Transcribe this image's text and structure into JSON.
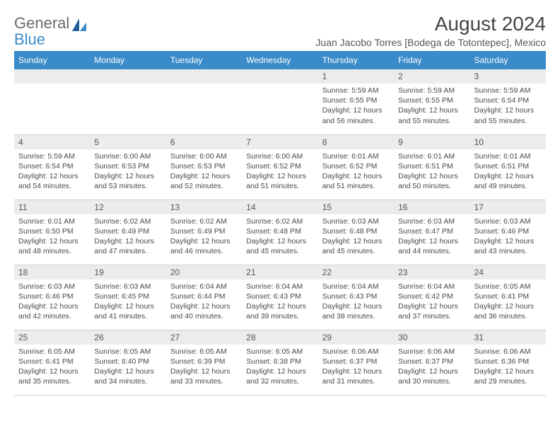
{
  "logo": {
    "word1": "General",
    "word2": "Blue"
  },
  "title": "August 2024",
  "location": "Juan Jacobo Torres [Bodega de Totontepec], Mexico",
  "colors": {
    "header_bg": "#3a8bc9",
    "header_text": "#ffffff",
    "daynum_bg": "#ececec",
    "border": "#d0d0d0",
    "body_text": "#4a4a4a"
  },
  "weekdays": [
    "Sunday",
    "Monday",
    "Tuesday",
    "Wednesday",
    "Thursday",
    "Friday",
    "Saturday"
  ],
  "layout": {
    "first_weekday_index": 4,
    "num_days": 31,
    "cols": 7,
    "rows": 5
  },
  "days": {
    "1": {
      "sunrise": "5:59 AM",
      "sunset": "6:55 PM",
      "daylight": "12 hours and 56 minutes."
    },
    "2": {
      "sunrise": "5:59 AM",
      "sunset": "6:55 PM",
      "daylight": "12 hours and 55 minutes."
    },
    "3": {
      "sunrise": "5:59 AM",
      "sunset": "6:54 PM",
      "daylight": "12 hours and 55 minutes."
    },
    "4": {
      "sunrise": "5:59 AM",
      "sunset": "6:54 PM",
      "daylight": "12 hours and 54 minutes."
    },
    "5": {
      "sunrise": "6:00 AM",
      "sunset": "6:53 PM",
      "daylight": "12 hours and 53 minutes."
    },
    "6": {
      "sunrise": "6:00 AM",
      "sunset": "6:53 PM",
      "daylight": "12 hours and 52 minutes."
    },
    "7": {
      "sunrise": "6:00 AM",
      "sunset": "6:52 PM",
      "daylight": "12 hours and 51 minutes."
    },
    "8": {
      "sunrise": "6:01 AM",
      "sunset": "6:52 PM",
      "daylight": "12 hours and 51 minutes."
    },
    "9": {
      "sunrise": "6:01 AM",
      "sunset": "6:51 PM",
      "daylight": "12 hours and 50 minutes."
    },
    "10": {
      "sunrise": "6:01 AM",
      "sunset": "6:51 PM",
      "daylight": "12 hours and 49 minutes."
    },
    "11": {
      "sunrise": "6:01 AM",
      "sunset": "6:50 PM",
      "daylight": "12 hours and 48 minutes."
    },
    "12": {
      "sunrise": "6:02 AM",
      "sunset": "6:49 PM",
      "daylight": "12 hours and 47 minutes."
    },
    "13": {
      "sunrise": "6:02 AM",
      "sunset": "6:49 PM",
      "daylight": "12 hours and 46 minutes."
    },
    "14": {
      "sunrise": "6:02 AM",
      "sunset": "6:48 PM",
      "daylight": "12 hours and 45 minutes."
    },
    "15": {
      "sunrise": "6:03 AM",
      "sunset": "6:48 PM",
      "daylight": "12 hours and 45 minutes."
    },
    "16": {
      "sunrise": "6:03 AM",
      "sunset": "6:47 PM",
      "daylight": "12 hours and 44 minutes."
    },
    "17": {
      "sunrise": "6:03 AM",
      "sunset": "6:46 PM",
      "daylight": "12 hours and 43 minutes."
    },
    "18": {
      "sunrise": "6:03 AM",
      "sunset": "6:46 PM",
      "daylight": "12 hours and 42 minutes."
    },
    "19": {
      "sunrise": "6:03 AM",
      "sunset": "6:45 PM",
      "daylight": "12 hours and 41 minutes."
    },
    "20": {
      "sunrise": "6:04 AM",
      "sunset": "6:44 PM",
      "daylight": "12 hours and 40 minutes."
    },
    "21": {
      "sunrise": "6:04 AM",
      "sunset": "6:43 PM",
      "daylight": "12 hours and 39 minutes."
    },
    "22": {
      "sunrise": "6:04 AM",
      "sunset": "6:43 PM",
      "daylight": "12 hours and 38 minutes."
    },
    "23": {
      "sunrise": "6:04 AM",
      "sunset": "6:42 PM",
      "daylight": "12 hours and 37 minutes."
    },
    "24": {
      "sunrise": "6:05 AM",
      "sunset": "6:41 PM",
      "daylight": "12 hours and 36 minutes."
    },
    "25": {
      "sunrise": "6:05 AM",
      "sunset": "6:41 PM",
      "daylight": "12 hours and 35 minutes."
    },
    "26": {
      "sunrise": "6:05 AM",
      "sunset": "6:40 PM",
      "daylight": "12 hours and 34 minutes."
    },
    "27": {
      "sunrise": "6:05 AM",
      "sunset": "6:39 PM",
      "daylight": "12 hours and 33 minutes."
    },
    "28": {
      "sunrise": "6:05 AM",
      "sunset": "6:38 PM",
      "daylight": "12 hours and 32 minutes."
    },
    "29": {
      "sunrise": "6:06 AM",
      "sunset": "6:37 PM",
      "daylight": "12 hours and 31 minutes."
    },
    "30": {
      "sunrise": "6:06 AM",
      "sunset": "6:37 PM",
      "daylight": "12 hours and 30 minutes."
    },
    "31": {
      "sunrise": "6:06 AM",
      "sunset": "6:36 PM",
      "daylight": "12 hours and 29 minutes."
    }
  },
  "labels": {
    "sunrise_prefix": "Sunrise: ",
    "sunset_prefix": "Sunset: ",
    "daylight_prefix": "Daylight: "
  }
}
